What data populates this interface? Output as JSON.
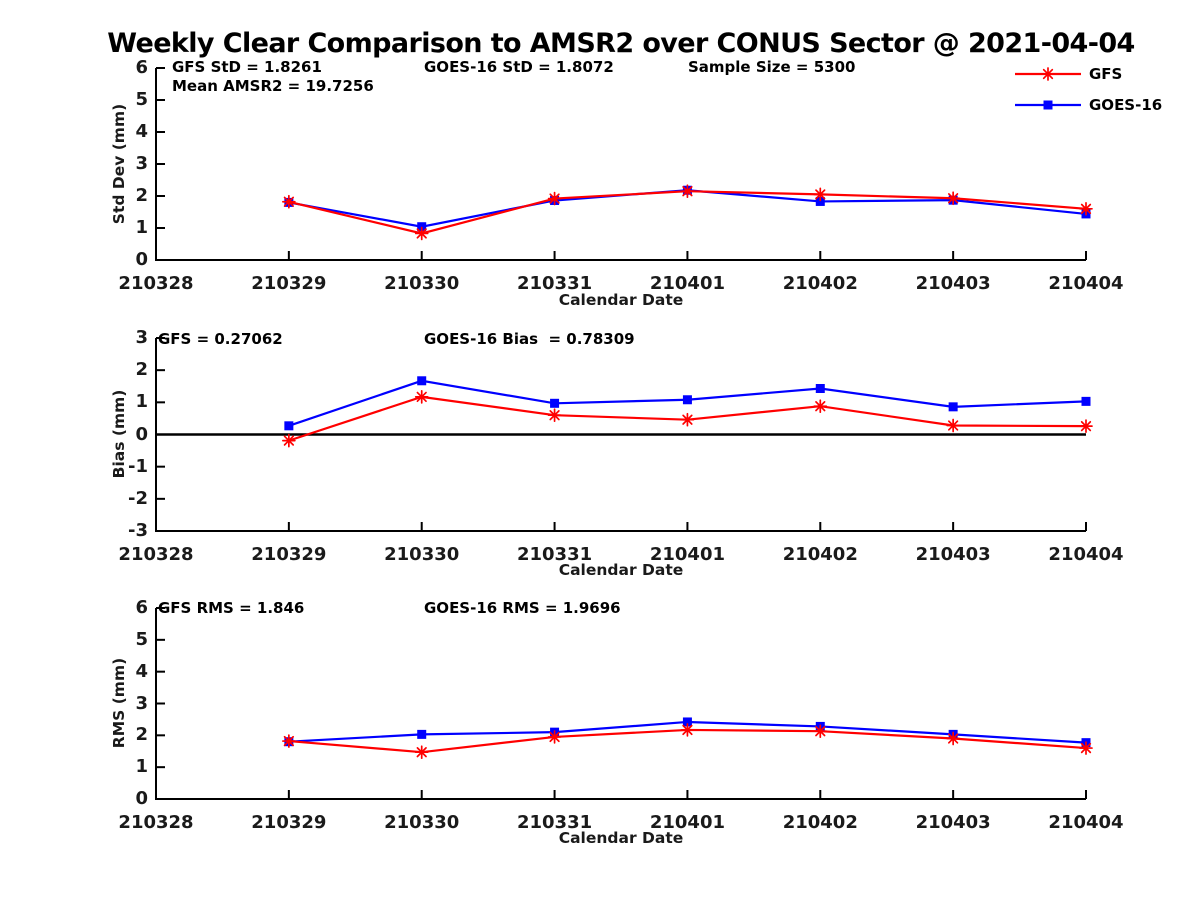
{
  "title": "Weekly Clear Comparison to AMSR2 over CONUS Sector @ 2021-04-04",
  "legend": {
    "position": "top-right-outside",
    "items": [
      {
        "label": "GFS",
        "color": "#ff0000",
        "marker": "asterisk"
      },
      {
        "label": "GOES-16",
        "color": "#0000ff",
        "marker": "square"
      }
    ]
  },
  "colors": {
    "gfs": "#ff0000",
    "goes16": "#0000ff",
    "axis": "#000000",
    "text": "#1a1a1a"
  },
  "chart_data": [
    {
      "type": "line",
      "panel": "std-dev",
      "ylabel": "Std Dev (mm)",
      "xlabel": "Calendar Date",
      "ylim": [
        0,
        6
      ],
      "yticks": [
        0,
        1,
        2,
        3,
        4,
        5,
        6
      ],
      "grid": false,
      "zero_line": false,
      "x_ticklabels": [
        "210328",
        "210329",
        "210330",
        "210331",
        "210401",
        "210402",
        "210403",
        "210404"
      ],
      "x": [
        "210329",
        "210330",
        "210331",
        "210401",
        "210402",
        "210403",
        "210404"
      ],
      "series": [
        {
          "name": "GFS",
          "color": "#ff0000",
          "marker": "asterisk",
          "values": [
            1.82,
            0.83,
            1.92,
            2.15,
            2.05,
            1.93,
            1.6
          ]
        },
        {
          "name": "GOES-16",
          "color": "#0000ff",
          "marker": "square",
          "values": [
            1.8,
            1.04,
            1.86,
            2.18,
            1.83,
            1.87,
            1.44
          ]
        }
      ],
      "annotations": [
        "GFS StD = 1.8261",
        "GOES-16 StD = 1.8072",
        "Sample Size = 5300",
        "Mean AMSR2 = 19.7256"
      ]
    },
    {
      "type": "line",
      "panel": "bias",
      "ylabel": "Bias (mm)",
      "xlabel": "Calendar Date",
      "ylim": [
        -3,
        3
      ],
      "yticks": [
        -3,
        -2,
        -1,
        0,
        1,
        2,
        3
      ],
      "grid": false,
      "zero_line": true,
      "x_ticklabels": [
        "210328",
        "210329",
        "210330",
        "210331",
        "210401",
        "210402",
        "210403",
        "210404"
      ],
      "x": [
        "210329",
        "210330",
        "210331",
        "210401",
        "210402",
        "210403",
        "210404"
      ],
      "series": [
        {
          "name": "GFS",
          "color": "#ff0000",
          "marker": "asterisk",
          "values": [
            -0.19,
            1.17,
            0.6,
            0.46,
            0.88,
            0.28,
            0.26
          ]
        },
        {
          "name": "GOES-16",
          "color": "#0000ff",
          "marker": "square",
          "values": [
            0.27,
            1.67,
            0.97,
            1.08,
            1.43,
            0.86,
            1.03
          ]
        }
      ],
      "annotations": [
        "GFS = 0.27062",
        "GOES-16 Bias  = 0.78309"
      ]
    },
    {
      "type": "line",
      "panel": "rms",
      "ylabel": "RMS (mm)",
      "xlabel": "Calendar Date",
      "ylim": [
        0,
        6
      ],
      "yticks": [
        0,
        1,
        2,
        3,
        4,
        5,
        6
      ],
      "grid": false,
      "zero_line": false,
      "x_ticklabels": [
        "210328",
        "210329",
        "210330",
        "210331",
        "210401",
        "210402",
        "210403",
        "210404"
      ],
      "x": [
        "210329",
        "210330",
        "210331",
        "210401",
        "210402",
        "210403",
        "210404"
      ],
      "series": [
        {
          "name": "GFS",
          "color": "#ff0000",
          "marker": "asterisk",
          "values": [
            1.82,
            1.47,
            1.95,
            2.17,
            2.13,
            1.9,
            1.6
          ]
        },
        {
          "name": "GOES-16",
          "color": "#0000ff",
          "marker": "square",
          "values": [
            1.8,
            2.03,
            2.1,
            2.42,
            2.28,
            2.03,
            1.77
          ]
        }
      ],
      "annotations": [
        "GFS RMS = 1.846",
        "GOES-16 RMS = 1.9696"
      ]
    }
  ]
}
